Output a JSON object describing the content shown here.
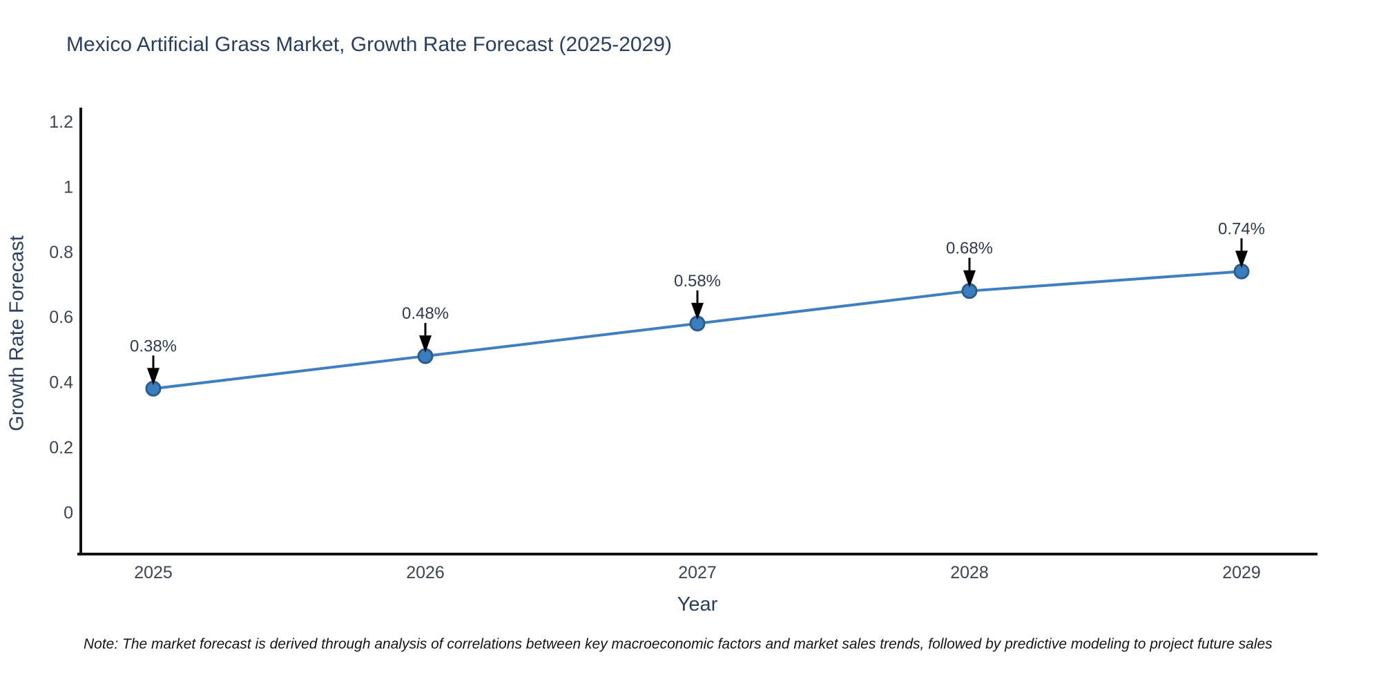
{
  "title": "Mexico Artificial Grass Market, Growth Rate Forecast (2025-2029)",
  "note": "Note: The market forecast is derived through analysis of correlations between key macroeconomic factors and market sales trends, followed by predictive modeling to project future sales",
  "chart_data": {
    "type": "line",
    "title": "Mexico Artificial Grass Market, Growth Rate Forecast (2025-2029)",
    "xlabel": "Year",
    "ylabel": "Growth Rate Forecast",
    "categories": [
      2025,
      2026,
      2027,
      2028,
      2029
    ],
    "values": [
      0.38,
      0.48,
      0.58,
      0.68,
      0.74
    ],
    "point_labels": [
      "0.38%",
      "0.48%",
      "0.58%",
      "0.68%",
      "0.74%"
    ],
    "y_ticks": [
      0,
      0.2,
      0.4,
      0.6,
      0.8,
      1,
      1.2
    ],
    "ylim": [
      -0.128,
      1.243
    ],
    "grid": false,
    "legend": "none",
    "colors": {
      "line": "#3f7fbf",
      "marker_fill": "#3a7ebf",
      "marker_edge": "#2a5d8a",
      "axis": "#111111",
      "tick_text": "#3b4553",
      "annotation_text": "#2f3b4c",
      "arrow": "#000000"
    }
  }
}
